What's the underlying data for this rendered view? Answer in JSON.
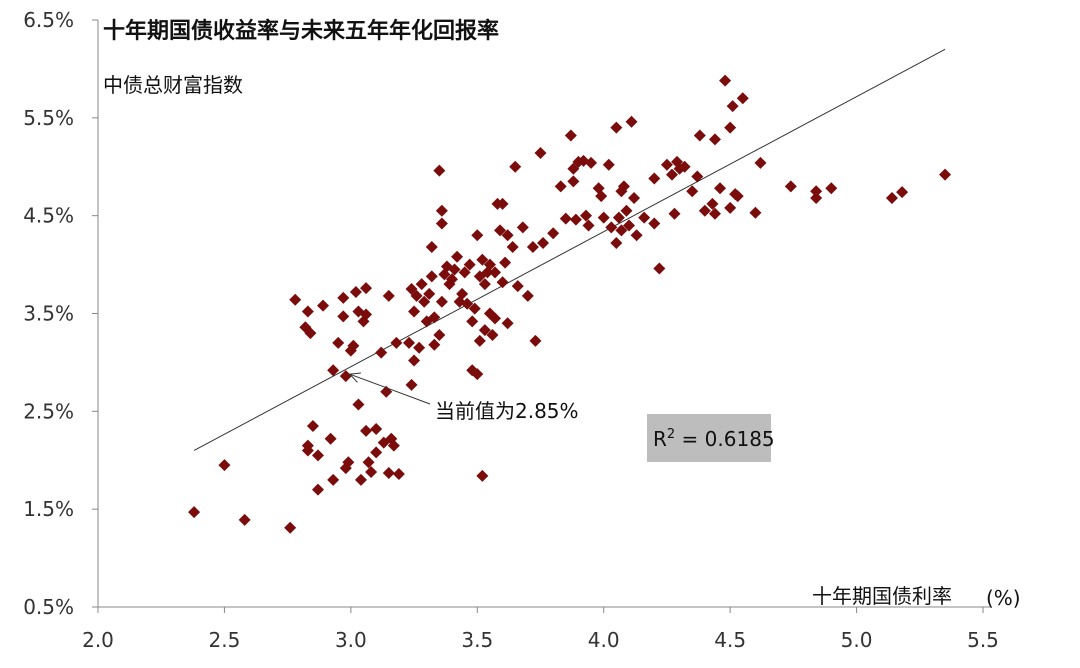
{
  "chart_data": {
    "type": "scatter",
    "title": "十年期国债收益率与未来五年年化回报率",
    "subtitle": "中债总财富指数",
    "xlabel": "十年期国债利率",
    "xunit": "(%)",
    "ylabel": "",
    "xlim": [
      2.0,
      5.5
    ],
    "ylim": [
      0.5,
      6.5
    ],
    "xticks": [
      "2.0",
      "2.5",
      "3.0",
      "3.5",
      "4.0",
      "4.5",
      "5.0",
      "5.5"
    ],
    "yticks": [
      "0.5%",
      "1.5%",
      "2.5%",
      "3.5%",
      "4.5%",
      "5.5%",
      "6.5%"
    ],
    "marker_color": "#7b0c0c",
    "trendline": {
      "x": [
        2.38,
        5.35
      ],
      "y": [
        2.1,
        6.2
      ]
    },
    "r2": {
      "label": "R",
      "sup": "2",
      "value": " = 0.6185",
      "bg": "#bdbdbd"
    },
    "annotation": {
      "text": "当前值为2.85%",
      "x": 2.98,
      "y": 2.88
    },
    "points": [
      [
        2.38,
        1.47
      ],
      [
        2.5,
        1.95
      ],
      [
        2.58,
        1.39
      ],
      [
        2.76,
        1.31
      ],
      [
        2.78,
        3.64
      ],
      [
        2.82,
        3.36
      ],
      [
        2.84,
        3.3
      ],
      [
        2.83,
        3.52
      ],
      [
        2.83,
        2.1
      ],
      [
        2.83,
        2.15
      ],
      [
        2.85,
        2.35
      ],
      [
        2.87,
        2.05
      ],
      [
        2.87,
        1.7
      ],
      [
        2.89,
        3.58
      ],
      [
        2.92,
        2.22
      ],
      [
        2.93,
        2.92
      ],
      [
        2.93,
        1.8
      ],
      [
        2.95,
        3.2
      ],
      [
        2.97,
        3.47
      ],
      [
        2.97,
        3.66
      ],
      [
        2.98,
        2.86
      ],
      [
        2.98,
        1.92
      ],
      [
        2.99,
        1.98
      ],
      [
        3.0,
        3.12
      ],
      [
        3.01,
        3.17
      ],
      [
        3.02,
        3.72
      ],
      [
        3.03,
        3.52
      ],
      [
        3.03,
        2.57
      ],
      [
        3.04,
        1.8
      ],
      [
        3.05,
        3.42
      ],
      [
        3.06,
        3.76
      ],
      [
        3.06,
        2.3
      ],
      [
        3.06,
        3.49
      ],
      [
        3.07,
        1.98
      ],
      [
        3.08,
        1.88
      ],
      [
        3.1,
        2.32
      ],
      [
        3.1,
        2.08
      ],
      [
        3.12,
        3.1
      ],
      [
        3.13,
        2.18
      ],
      [
        3.14,
        2.7
      ],
      [
        3.15,
        3.68
      ],
      [
        3.15,
        1.87
      ],
      [
        3.16,
        2.22
      ],
      [
        3.17,
        2.15
      ],
      [
        3.18,
        3.2
      ],
      [
        3.19,
        1.86
      ],
      [
        3.23,
        3.2
      ],
      [
        3.24,
        3.75
      ],
      [
        3.24,
        2.77
      ],
      [
        3.25,
        3.02
      ],
      [
        3.25,
        3.52
      ],
      [
        3.26,
        3.68
      ],
      [
        3.27,
        3.15
      ],
      [
        3.28,
        3.8
      ],
      [
        3.29,
        3.62
      ],
      [
        3.3,
        3.42
      ],
      [
        3.31,
        3.7
      ],
      [
        3.32,
        4.18
      ],
      [
        3.32,
        3.88
      ],
      [
        3.33,
        3.46
      ],
      [
        3.33,
        3.18
      ],
      [
        3.35,
        4.96
      ],
      [
        3.35,
        3.28
      ],
      [
        3.36,
        3.62
      ],
      [
        3.36,
        4.42
      ],
      [
        3.36,
        4.55
      ],
      [
        3.37,
        3.9
      ],
      [
        3.38,
        3.98
      ],
      [
        3.39,
        3.8
      ],
      [
        3.4,
        3.85
      ],
      [
        3.41,
        3.95
      ],
      [
        3.42,
        4.08
      ],
      [
        3.43,
        3.62
      ],
      [
        3.44,
        3.7
      ],
      [
        3.45,
        3.92
      ],
      [
        3.46,
        3.6
      ],
      [
        3.47,
        4.0
      ],
      [
        3.48,
        3.42
      ],
      [
        3.48,
        2.92
      ],
      [
        3.49,
        3.55
      ],
      [
        3.5,
        4.3
      ],
      [
        3.5,
        2.88
      ],
      [
        3.51,
        3.22
      ],
      [
        3.51,
        3.88
      ],
      [
        3.52,
        4.05
      ],
      [
        3.52,
        1.84
      ],
      [
        3.53,
        3.33
      ],
      [
        3.53,
        3.8
      ],
      [
        3.54,
        3.92
      ],
      [
        3.55,
        4.0
      ],
      [
        3.55,
        3.5
      ],
      [
        3.56,
        3.28
      ],
      [
        3.57,
        3.45
      ],
      [
        3.57,
        3.92
      ],
      [
        3.58,
        4.62
      ],
      [
        3.59,
        4.35
      ],
      [
        3.6,
        3.82
      ],
      [
        3.6,
        4.62
      ],
      [
        3.61,
        4.02
      ],
      [
        3.62,
        3.4
      ],
      [
        3.62,
        4.3
      ],
      [
        3.64,
        4.18
      ],
      [
        3.65,
        5.0
      ],
      [
        3.66,
        3.78
      ],
      [
        3.68,
        4.38
      ],
      [
        3.7,
        3.68
      ],
      [
        3.72,
        4.18
      ],
      [
        3.73,
        3.22
      ],
      [
        3.75,
        5.14
      ],
      [
        3.76,
        4.22
      ],
      [
        3.8,
        4.32
      ],
      [
        3.83,
        4.8
      ],
      [
        3.85,
        4.47
      ],
      [
        3.87,
        5.32
      ],
      [
        3.88,
        4.85
      ],
      [
        3.88,
        4.98
      ],
      [
        3.89,
        4.46
      ],
      [
        3.9,
        5.05
      ],
      [
        3.92,
        5.06
      ],
      [
        3.93,
        4.5
      ],
      [
        3.94,
        4.4
      ],
      [
        3.95,
        5.04
      ],
      [
        3.98,
        4.78
      ],
      [
        3.99,
        4.7
      ],
      [
        4.0,
        4.48
      ],
      [
        4.02,
        5.02
      ],
      [
        4.03,
        4.38
      ],
      [
        4.05,
        5.4
      ],
      [
        4.05,
        4.22
      ],
      [
        4.06,
        4.48
      ],
      [
        4.07,
        4.75
      ],
      [
        4.07,
        4.35
      ],
      [
        4.08,
        4.8
      ],
      [
        4.09,
        4.55
      ],
      [
        4.1,
        4.4
      ],
      [
        4.11,
        5.46
      ],
      [
        4.12,
        4.68
      ],
      [
        4.13,
        4.3
      ],
      [
        4.16,
        4.48
      ],
      [
        4.2,
        4.42
      ],
      [
        4.2,
        4.88
      ],
      [
        4.22,
        3.96
      ],
      [
        4.25,
        5.02
      ],
      [
        4.27,
        4.92
      ],
      [
        4.28,
        4.52
      ],
      [
        4.29,
        5.05
      ],
      [
        4.3,
        4.98
      ],
      [
        4.32,
        5.0
      ],
      [
        4.35,
        4.75
      ],
      [
        4.37,
        4.9
      ],
      [
        4.38,
        5.32
      ],
      [
        4.4,
        4.55
      ],
      [
        4.43,
        4.62
      ],
      [
        4.44,
        4.52
      ],
      [
        4.44,
        5.28
      ],
      [
        4.46,
        4.78
      ],
      [
        4.48,
        5.88
      ],
      [
        4.5,
        4.58
      ],
      [
        4.5,
        5.4
      ],
      [
        4.51,
        5.62
      ],
      [
        4.52,
        4.72
      ],
      [
        4.53,
        4.7
      ],
      [
        4.55,
        5.7
      ],
      [
        4.6,
        4.53
      ],
      [
        4.62,
        5.04
      ],
      [
        4.74,
        4.8
      ],
      [
        4.84,
        4.68
      ],
      [
        4.84,
        4.75
      ],
      [
        4.9,
        4.78
      ],
      [
        5.14,
        4.68
      ],
      [
        5.18,
        4.74
      ],
      [
        5.35,
        4.92
      ]
    ]
  }
}
